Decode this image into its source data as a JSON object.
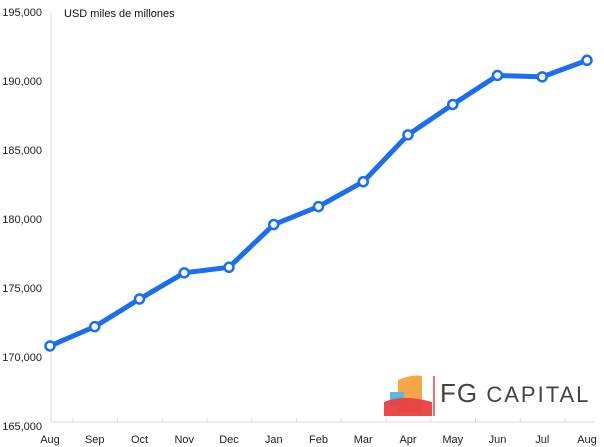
{
  "chart_data": {
    "type": "line",
    "title": "USD miles de millones",
    "xlabel": "",
    "ylabel": "",
    "categories": [
      "Aug",
      "Sep",
      "Oct",
      "Nov",
      "Dec",
      "Jan",
      "Feb",
      "Mar",
      "Apr",
      "May",
      "Jun",
      "Jul",
      "Aug"
    ],
    "values": [
      170800,
      172200,
      174200,
      176100,
      176500,
      179600,
      180900,
      182700,
      186100,
      188300,
      190400,
      190300,
      191500
    ],
    "ylim": [
      165000,
      195000
    ],
    "yticks": [
      165000,
      170000,
      175000,
      180000,
      185000,
      190000,
      195000
    ],
    "ytick_labels": [
      "165,000",
      "170,000",
      "175,000",
      "180,000",
      "185,000",
      "190,000",
      "195,000"
    ],
    "grid": false,
    "line_color": "#1a6ef0",
    "marker_fill": "#ffffff"
  },
  "logo": {
    "brand": "FG",
    "name": "CAPITAL"
  }
}
